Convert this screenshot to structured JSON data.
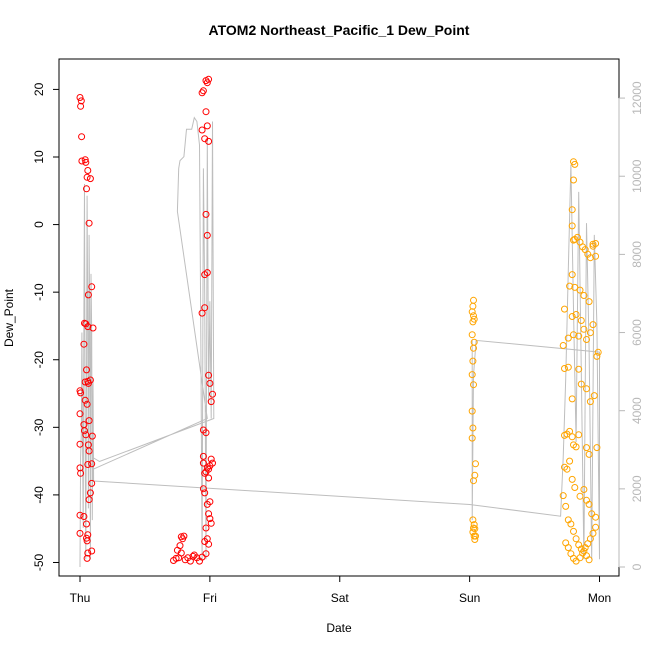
{
  "chart_data": {
    "type": "scatter",
    "title": "ATOM2 Northeast_Pacific_1 Dew_Point",
    "xlabel": "Date",
    "ylabel": "Dew_Point",
    "x_is_time": true,
    "xlim": [
      0,
      4.15
    ],
    "ylim": [
      -52,
      24.5
    ],
    "x_ticks": [
      {
        "value": 0,
        "label": "Thu"
      },
      {
        "value": 1,
        "label": "Fri"
      },
      {
        "value": 2,
        "label": "Sat"
      },
      {
        "value": 3,
        "label": "Sun"
      },
      {
        "value": 4,
        "label": "Mon"
      }
    ],
    "y_ticks": [
      -50,
      -40,
      -30,
      -20,
      -10,
      0,
      10,
      20
    ],
    "y2_ticks": [
      0,
      2000,
      4000,
      6000,
      8000,
      10000,
      12000
    ],
    "y2lim": [
      -230,
      13000
    ],
    "colors": {
      "red_series": "#ff0000",
      "orange_series": "#ffa500",
      "line_series": "#bebebe"
    },
    "series": [
      {
        "color": "#ff0000",
        "marker": "open-circle",
        "points": [
          [
            0.0,
            18.8
          ],
          [
            0.01,
            18.3
          ],
          [
            0.005,
            17.5
          ],
          [
            0.012,
            13.0
          ],
          [
            0.015,
            9.4
          ],
          [
            0.04,
            9.6
          ],
          [
            0.045,
            9.2
          ],
          [
            0.06,
            8.0
          ],
          [
            0.055,
            7.0
          ],
          [
            0.05,
            5.3
          ],
          [
            0.07,
            0.2
          ],
          [
            0.08,
            6.8
          ],
          [
            0.065,
            -10.4
          ],
          [
            0.09,
            -9.2
          ],
          [
            0.035,
            -14.6
          ],
          [
            0.045,
            -14.7
          ],
          [
            0.06,
            -15.1
          ],
          [
            0.1,
            -15.3
          ],
          [
            0.03,
            -17.7
          ],
          [
            0.05,
            -21.5
          ],
          [
            0.04,
            -23.3
          ],
          [
            0.06,
            -23.2
          ],
          [
            0.065,
            -23.5
          ],
          [
            0.08,
            -23.0
          ],
          [
            0.0,
            -24.6
          ],
          [
            0.005,
            -24.9
          ],
          [
            0.04,
            -26.0
          ],
          [
            0.055,
            -26.6
          ],
          [
            0.0,
            -28.0
          ],
          [
            0.07,
            -29.0
          ],
          [
            0.03,
            -29.6
          ],
          [
            0.035,
            -30.5
          ],
          [
            0.045,
            -31.1
          ],
          [
            0.095,
            -31.3
          ],
          [
            0.0,
            -32.5
          ],
          [
            0.065,
            -32.6
          ],
          [
            0.07,
            -33.5
          ],
          [
            0.06,
            -35.5
          ],
          [
            0.09,
            -35.4
          ],
          [
            0.0,
            -36.0
          ],
          [
            0.005,
            -36.8
          ],
          [
            0.09,
            -38.3
          ],
          [
            0.08,
            -39.7
          ],
          [
            0.07,
            -40.7
          ],
          [
            0.0,
            -43.0
          ],
          [
            0.03,
            -43.2
          ],
          [
            0.05,
            -44.3
          ],
          [
            0.0,
            -45.7
          ],
          [
            0.06,
            -45.9
          ],
          [
            0.05,
            -46.4
          ],
          [
            0.055,
            -46.8
          ],
          [
            0.09,
            -48.3
          ],
          [
            0.06,
            -48.6
          ],
          [
            0.055,
            -49.4
          ],
          [
            0.72,
            -49.7
          ],
          [
            0.74,
            -49.4
          ],
          [
            0.76,
            -49.3
          ],
          [
            0.78,
            -48.6
          ],
          [
            0.75,
            -48.2
          ],
          [
            0.77,
            -47.5
          ],
          [
            0.79,
            -46.5
          ],
          [
            0.8,
            -46.1
          ],
          [
            0.78,
            -46.2
          ],
          [
            0.81,
            -49.6
          ],
          [
            0.83,
            -49.3
          ],
          [
            0.85,
            -49.8
          ],
          [
            0.87,
            -49.1
          ],
          [
            0.88,
            -48.9
          ],
          [
            0.9,
            -49.3
          ],
          [
            0.92,
            -49.8
          ],
          [
            0.94,
            -49.2
          ],
          [
            0.97,
            -48.7
          ],
          [
            0.99,
            -47.3
          ],
          [
            0.96,
            -46.9
          ],
          [
            0.98,
            -46.5
          ],
          [
            0.97,
            -44.9
          ],
          [
            1.0,
            -43.5
          ],
          [
            0.99,
            -42.8
          ],
          [
            1.01,
            -44.2
          ],
          [
            0.98,
            -41.4
          ],
          [
            1.0,
            -41.0
          ],
          [
            0.96,
            -39.7
          ],
          [
            0.95,
            -39.1
          ],
          [
            0.99,
            -37.5
          ],
          [
            0.96,
            -36.8
          ],
          [
            0.97,
            -36.6
          ],
          [
            0.99,
            -36.2
          ],
          [
            0.98,
            -36.0
          ],
          [
            1.0,
            -35.7
          ],
          [
            0.95,
            -35.3
          ],
          [
            1.02,
            -35.3
          ],
          [
            1.01,
            -34.7
          ],
          [
            0.95,
            -34.3
          ],
          [
            0.95,
            -30.4
          ],
          [
            0.97,
            -30.8
          ],
          [
            1.01,
            -26.2
          ],
          [
            1.02,
            -25.1
          ],
          [
            1.0,
            -23.5
          ],
          [
            0.99,
            -22.3
          ],
          [
            0.94,
            -13.1
          ],
          [
            0.96,
            -12.3
          ],
          [
            0.98,
            -7.1
          ],
          [
            0.96,
            -7.4
          ],
          [
            0.98,
            -1.6
          ],
          [
            0.97,
            1.5
          ],
          [
            0.99,
            12.3
          ],
          [
            0.96,
            12.7
          ],
          [
            0.98,
            14.6
          ],
          [
            0.94,
            14.0
          ],
          [
            0.97,
            16.7
          ],
          [
            0.94,
            19.5
          ],
          [
            0.95,
            19.8
          ],
          [
            0.98,
            21.0
          ],
          [
            0.99,
            21.5
          ],
          [
            0.97,
            21.3
          ]
        ]
      },
      {
        "color": "#ffa500",
        "marker": "open-circle",
        "points": [
          [
            3.03,
            -11.2
          ],
          [
            3.025,
            -12.1
          ],
          [
            3.02,
            -12.9
          ],
          [
            3.03,
            -13.5
          ],
          [
            3.035,
            -14.0
          ],
          [
            3.025,
            -14.4
          ],
          [
            3.02,
            -16.3
          ],
          [
            3.035,
            -17.4
          ],
          [
            3.03,
            -18.3
          ],
          [
            3.025,
            -20.2
          ],
          [
            3.02,
            -22.2
          ],
          [
            3.03,
            -23.7
          ],
          [
            3.02,
            -27.6
          ],
          [
            3.025,
            -30.1
          ],
          [
            3.02,
            -31.6
          ],
          [
            3.045,
            -35.4
          ],
          [
            3.04,
            -37.1
          ],
          [
            3.03,
            -37.9
          ],
          [
            3.025,
            -43.7
          ],
          [
            3.035,
            -44.4
          ],
          [
            3.03,
            -44.9
          ],
          [
            3.04,
            -45.0
          ],
          [
            3.025,
            -45.5
          ],
          [
            3.045,
            -46.1
          ],
          [
            3.04,
            -46.6
          ],
          [
            3.035,
            -46.1
          ],
          [
            3.73,
            -12.5
          ],
          [
            3.72,
            -17.9
          ],
          [
            3.76,
            -16.8
          ],
          [
            3.8,
            -16.3
          ],
          [
            3.84,
            -16.5
          ],
          [
            3.79,
            -13.6
          ],
          [
            3.82,
            -13.3
          ],
          [
            3.86,
            -14.2
          ],
          [
            3.88,
            -15.5
          ],
          [
            3.9,
            -17.0
          ],
          [
            3.93,
            -16.0
          ],
          [
            3.95,
            -14.8
          ],
          [
            3.92,
            -11.4
          ],
          [
            3.88,
            -10.5
          ],
          [
            3.85,
            -9.7
          ],
          [
            3.81,
            -9.3
          ],
          [
            3.77,
            -9.1
          ],
          [
            3.79,
            -7.4
          ],
          [
            3.8,
            -2.3
          ],
          [
            3.81,
            -2.2
          ],
          [
            3.83,
            -1.9
          ],
          [
            3.85,
            -2.6
          ],
          [
            3.87,
            -3.3
          ],
          [
            3.89,
            -3.7
          ],
          [
            3.91,
            -4.4
          ],
          [
            3.93,
            -4.9
          ],
          [
            3.95,
            -2.9
          ],
          [
            3.97,
            -2.8
          ],
          [
            3.95,
            -3.2
          ],
          [
            3.97,
            -4.7
          ],
          [
            3.79,
            2.2
          ],
          [
            3.8,
            6.6
          ],
          [
            3.81,
            8.9
          ],
          [
            3.8,
            9.3
          ],
          [
            3.79,
            -0.2
          ],
          [
            3.73,
            -21.3
          ],
          [
            3.76,
            -21.1
          ],
          [
            3.79,
            -25.8
          ],
          [
            3.84,
            -21.4
          ],
          [
            3.86,
            -23.6
          ],
          [
            3.9,
            -24.3
          ],
          [
            3.93,
            -26.2
          ],
          [
            3.96,
            -25.3
          ],
          [
            3.98,
            -19.5
          ],
          [
            3.99,
            -18.9
          ],
          [
            3.73,
            -31.2
          ],
          [
            3.75,
            -31.0
          ],
          [
            3.77,
            -30.6
          ],
          [
            3.79,
            -31.4
          ],
          [
            3.8,
            -32.6
          ],
          [
            3.84,
            -31.1
          ],
          [
            3.82,
            -32.9
          ],
          [
            3.9,
            -33.0
          ],
          [
            3.92,
            -34.0
          ],
          [
            3.98,
            -33.0
          ],
          [
            3.73,
            -35.9
          ],
          [
            3.75,
            -36.2
          ],
          [
            3.77,
            -35.0
          ],
          [
            3.79,
            -37.7
          ],
          [
            3.81,
            -38.9
          ],
          [
            3.85,
            -40.2
          ],
          [
            3.88,
            -39.2
          ],
          [
            3.9,
            -40.8
          ],
          [
            3.92,
            -41.4
          ],
          [
            3.94,
            -42.8
          ],
          [
            3.97,
            -43.3
          ],
          [
            3.72,
            -40.1
          ],
          [
            3.74,
            -41.7
          ],
          [
            3.76,
            -43.7
          ],
          [
            3.78,
            -44.3
          ],
          [
            3.8,
            -45.4
          ],
          [
            3.82,
            -46.5
          ],
          [
            3.84,
            -47.4
          ],
          [
            3.86,
            -48.0
          ],
          [
            3.88,
            -48.3
          ],
          [
            3.9,
            -49.0
          ],
          [
            3.92,
            -49.6
          ],
          [
            3.74,
            -47.1
          ],
          [
            3.76,
            -47.8
          ],
          [
            3.78,
            -48.7
          ],
          [
            3.8,
            -49.4
          ],
          [
            3.82,
            -49.8
          ],
          [
            3.85,
            -49.3
          ],
          [
            3.87,
            -48.6
          ],
          [
            3.89,
            -47.8
          ],
          [
            3.91,
            -47.2
          ],
          [
            3.93,
            -46.5
          ],
          [
            3.95,
            -45.7
          ],
          [
            3.97,
            -44.8
          ]
        ]
      },
      {
        "color": "#bebebe",
        "type": "line",
        "axis": "right",
        "points": [
          [
            0.0,
            0
          ],
          [
            0.005,
            2800
          ],
          [
            0.01,
            3400
          ],
          [
            0.015,
            6000
          ],
          [
            0.02,
            3000
          ],
          [
            0.025,
            1000
          ],
          [
            0.03,
            6500
          ],
          [
            0.035,
            9800
          ],
          [
            0.04,
            3000
          ],
          [
            0.045,
            200
          ],
          [
            0.05,
            4800
          ],
          [
            0.055,
            9500
          ],
          [
            0.06,
            6000
          ],
          [
            0.065,
            1500
          ],
          [
            0.07,
            8500
          ],
          [
            0.075,
            6500
          ],
          [
            0.08,
            200
          ],
          [
            0.085,
            7500
          ],
          [
            0.09,
            6000
          ],
          [
            0.095,
            1200
          ],
          [
            0.1,
            4800
          ],
          [
            0.105,
            2200
          ],
          [
            0.1,
            2500
          ],
          [
            0.98,
            3800
          ],
          [
            0.75,
            9100
          ],
          [
            0.76,
            10200
          ],
          [
            0.77,
            10400
          ],
          [
            0.8,
            10500
          ],
          [
            0.82,
            11200
          ],
          [
            0.86,
            11200
          ],
          [
            0.88,
            11500
          ],
          [
            0.9,
            11400
          ],
          [
            0.92,
            10800
          ],
          [
            0.93,
            6000
          ],
          [
            0.94,
            200
          ],
          [
            0.95,
            10200
          ],
          [
            0.96,
            7000
          ],
          [
            0.97,
            200
          ],
          [
            0.98,
            11000
          ],
          [
            0.99,
            4200
          ],
          [
            1.0,
            6800
          ],
          [
            1.01,
            3800
          ],
          [
            1.02,
            11400
          ],
          [
            1.03,
            3800
          ],
          [
            0.15,
            2700
          ],
          [
            0.1,
            2800
          ],
          [
            0.1,
            2800
          ],
          [
            0.105,
            2200
          ],
          [
            3.0,
            1600
          ],
          [
            3.7,
            1300
          ],
          [
            3.72,
            2800
          ],
          [
            3.74,
            4800
          ],
          [
            3.76,
            7600
          ],
          [
            3.78,
            10300
          ],
          [
            3.8,
            6600
          ],
          [
            3.82,
            3200
          ],
          [
            3.84,
            9600
          ],
          [
            3.86,
            5000
          ],
          [
            3.88,
            200
          ],
          [
            3.9,
            8800
          ],
          [
            3.92,
            5600
          ],
          [
            3.94,
            200
          ],
          [
            3.96,
            8500
          ],
          [
            3.98,
            6200
          ],
          [
            4.0,
            200
          ],
          [
            4.0,
            5500
          ],
          [
            3.05,
            5800
          ],
          [
            3.03,
            4900
          ],
          [
            3.02,
            1200
          ],
          [
            3.02,
            5800
          ]
        ]
      }
    ],
    "legend": "none",
    "grid": false
  }
}
